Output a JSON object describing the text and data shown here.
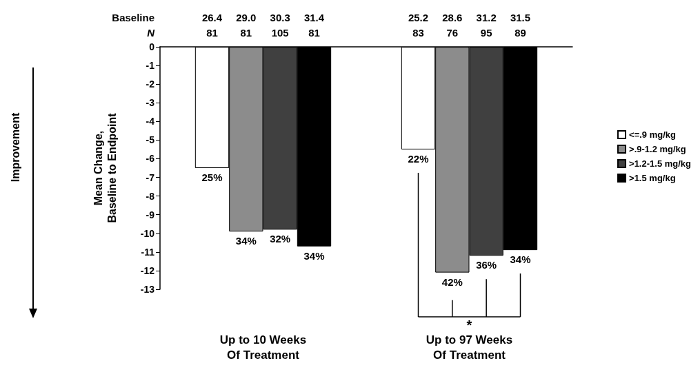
{
  "chart_data": {
    "type": "bar",
    "ylabel": "Mean Change,\nBaseline to Endpoint",
    "categories": [
      "Up to 10 Weeks\nOf Treatment",
      "Up to 97 Weeks\nOf Treatment"
    ],
    "series": [
      {
        "name": "<=.9 mg/kg",
        "color": "#ffffff",
        "values": [
          -6.5,
          -5.5
        ]
      },
      {
        "name": ">.9-1.2 mg/kg",
        "color": "#8c8c8c",
        "values": [
          -9.9,
          -12.1
        ]
      },
      {
        "name": ">1.2-1.5 mg/kg",
        "color": "#404040",
        "values": [
          -9.8,
          -11.2
        ]
      },
      {
        "name": ">1.5 mg/kg",
        "color": "#000000",
        "values": [
          -10.7,
          -10.9
        ]
      }
    ],
    "ylim": [
      -13,
      0
    ],
    "yticks": [
      0,
      -1,
      -2,
      -3,
      -4,
      -5,
      -6,
      -7,
      -8,
      -9,
      -10,
      -11,
      -12,
      -13
    ],
    "legend": "right",
    "grid": false,
    "annotations": [
      "Improvement",
      "Baseline",
      "N",
      "26.4",
      "29.0",
      "30.3",
      "31.4",
      "25.2",
      "28.6",
      "31.2",
      "31.5",
      "81",
      "81",
      "105",
      "81",
      "83",
      "76",
      "95",
      "89",
      "25%",
      "34%",
      "32%",
      "34%",
      "22%",
      "42%",
      "36%",
      "34%",
      "*"
    ]
  }
}
